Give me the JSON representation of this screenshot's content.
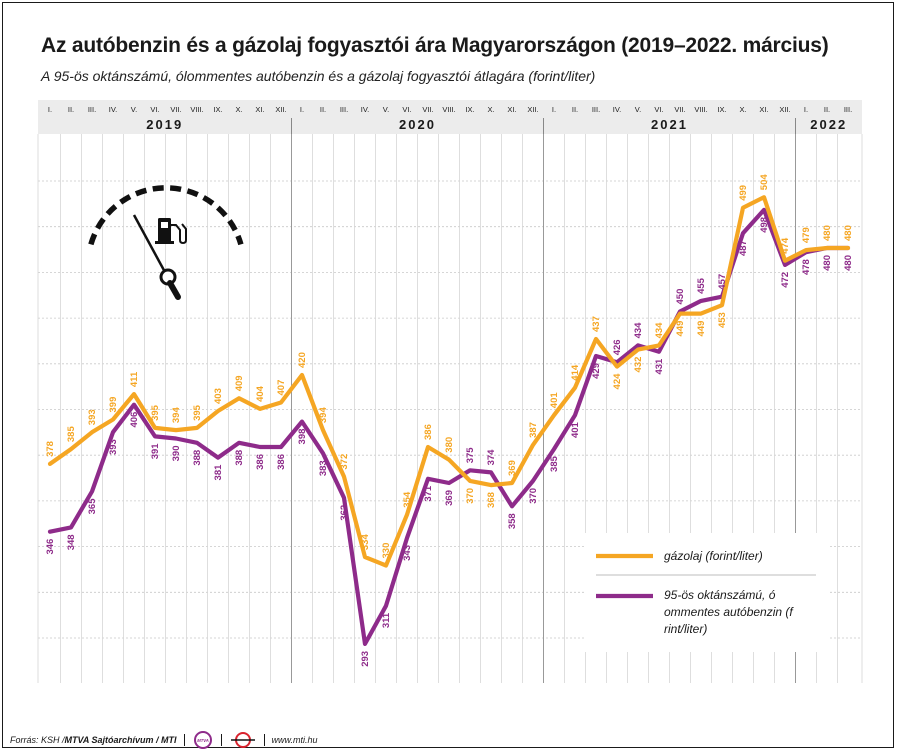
{
  "title": "Az autóbenzin és a gázolaj fogyasztói ára Magyarországon (2019–2022. március)",
  "subtitle": "A 95-ös oktánszámú, ólommentes autóbenzin és a gázolaj fogyasztói átlagára (forint/liter)",
  "chart_data": {
    "type": "line",
    "xlabel": "",
    "ylabel": "",
    "ylim": [
      280,
      530
    ],
    "grid": "on",
    "legend_position": "bottom-right",
    "years": [
      {
        "label": "2019",
        "months": 12
      },
      {
        "label": "2020",
        "months": 12
      },
      {
        "label": "2021",
        "months": 12
      },
      {
        "label": "2022",
        "months": 3
      }
    ],
    "categories": [
      "I.",
      "II.",
      "III.",
      "IV.",
      "V.",
      "VI.",
      "VII.",
      "VIII.",
      "IX.",
      "X.",
      "XI.",
      "XII.",
      "I.",
      "II.",
      "III.",
      "IV.",
      "V.",
      "VI.",
      "VII.",
      "VIII.",
      "IX.",
      "X.",
      "XI.",
      "XII.",
      "I.",
      "II.",
      "III.",
      "IV.",
      "V.",
      "VI.",
      "VII.",
      "VIII.",
      "IX.",
      "X.",
      "XI.",
      "XII.",
      "I.",
      "II.",
      "III."
    ],
    "series": [
      {
        "name": "gázolaj (forint/liter)",
        "color": "#f5a623",
        "values": [
          378,
          385,
          393,
          399,
          411,
          395,
          394,
          395,
          403,
          409,
          404,
          407,
          420,
          394,
          372,
          334,
          330,
          354,
          386,
          380,
          370,
          368,
          369,
          387,
          401,
          414,
          437,
          424,
          432,
          434,
          449,
          449,
          453,
          499,
          504,
          474,
          479,
          480,
          480
        ]
      },
      {
        "name": "95-ös oktánszámú, ólommentes autóbenzin (forint/liter)",
        "color": "#8e2b8a",
        "values": [
          346,
          348,
          365,
          393,
          406,
          391,
          390,
          388,
          381,
          388,
          386,
          386,
          398,
          383,
          362,
          293,
          311,
          343,
          371,
          369,
          375,
          374,
          358,
          370,
          385,
          401,
          429,
          426,
          434,
          431,
          450,
          455,
          457,
          487,
          498,
          472,
          478,
          480,
          480
        ]
      }
    ]
  },
  "footer": {
    "source_prefix": "Forrás: KSH / ",
    "source_bold": "MTVA Sajtóarchívum / MTI",
    "website": "www.mti.hu",
    "logo1_text": "MTVA"
  }
}
